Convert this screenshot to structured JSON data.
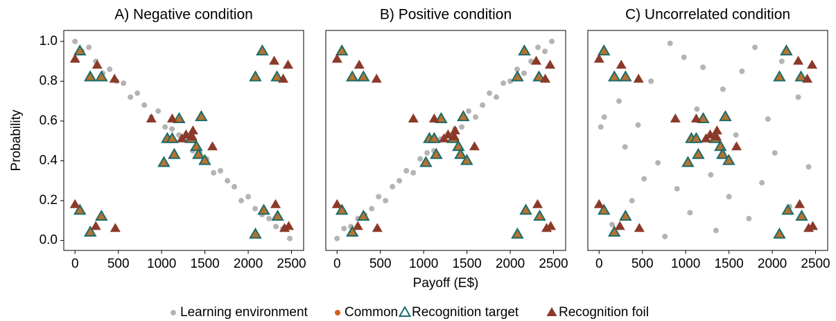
{
  "chart_data": [
    {
      "type": "scatter",
      "title": "A) Negative condition",
      "ylabel": "Probability",
      "xlim": [
        -130,
        2640
      ],
      "ylim": [
        -0.05,
        1.055
      ],
      "xticks": [
        0,
        500,
        1000,
        1500,
        2000,
        2500
      ],
      "yticks": [
        {
          "value": 0,
          "label": "0.0"
        },
        {
          "value": 0.2,
          "label": "0.2"
        },
        {
          "value": 0.4,
          "label": "0.4"
        },
        {
          "value": 0.6,
          "label": "0.6"
        },
        {
          "value": 0.8,
          "label": "0.8"
        },
        {
          "value": 1,
          "label": "1.0"
        }
      ],
      "series": [
        {
          "name": "Learning environment",
          "color": "#b4b4b4",
          "marker": "circle",
          "x": [
            0,
            80,
            160,
            240,
            320,
            400,
            480,
            560,
            640,
            720,
            800,
            880,
            960,
            1040,
            1120,
            1200,
            1280,
            1360,
            1440,
            1520,
            1600,
            1680,
            1760,
            1840,
            1920,
            2000,
            2080,
            2160,
            2240,
            2320,
            2400,
            2480
          ],
          "values": [
            1.0,
            0.95,
            0.97,
            0.9,
            0.84,
            0.86,
            0.8,
            0.79,
            0.72,
            0.74,
            0.68,
            0.62,
            0.65,
            0.57,
            0.56,
            0.53,
            0.51,
            0.45,
            0.44,
            0.41,
            0.34,
            0.35,
            0.3,
            0.27,
            0.2,
            0.22,
            0.16,
            0.13,
            0.11,
            0.07,
            0.06,
            0.01
          ]
        },
        {
          "name": "Common",
          "color": "#d2601a",
          "marker": "circle",
          "x": [],
          "values": []
        },
        {
          "name": "Recognition target",
          "color": "#1a6b6b",
          "marker": "triangle-open",
          "marker_fill": "#b8732e",
          "x": [
            56,
            176,
            305,
            56,
            176,
            305,
            1026,
            1066,
            1122,
            1146,
            1202,
            1338,
            1402,
            1458,
            1426,
            1498,
            2083,
            2163,
            2332,
            2083,
            2180,
            2340
          ],
          "values": [
            0.95,
            0.82,
            0.82,
            0.15,
            0.04,
            0.12,
            0.39,
            0.51,
            0.51,
            0.43,
            0.61,
            0.51,
            0.47,
            0.62,
            0.43,
            0.4,
            0.82,
            0.95,
            0.82,
            0.03,
            0.15,
            0.12
          ]
        },
        {
          "name": "Recognition foil",
          "color": "#8b3a2a",
          "marker": "triangle",
          "x": [
            0,
            256,
            456,
            0,
            240,
            465,
            881,
            1122,
            1234,
            1282,
            1354,
            1362,
            1587,
            2300,
            2404,
            2460,
            2316,
            2420,
            2468
          ],
          "values": [
            0.91,
            0.88,
            0.81,
            0.18,
            0.07,
            0.06,
            0.61,
            0.61,
            0.51,
            0.53,
            0.52,
            0.55,
            0.47,
            0.9,
            0.81,
            0.88,
            0.18,
            0.06,
            0.07
          ]
        }
      ]
    },
    {
      "type": "scatter",
      "title": "B) Positive condition",
      "xlabel": "Payoff (E$)",
      "xlim": [
        -130,
        2640
      ],
      "ylim": [
        -0.05,
        1.055
      ],
      "xticks": [
        0,
        500,
        1000,
        1500,
        2000,
        2500
      ],
      "series": [
        {
          "name": "Learning environment",
          "color": "#b4b4b4",
          "marker": "circle",
          "x": [
            0,
            80,
            160,
            240,
            320,
            400,
            480,
            560,
            640,
            720,
            800,
            880,
            960,
            1040,
            1120,
            1200,
            1280,
            1360,
            1440,
            1520,
            1600,
            1680,
            1760,
            1840,
            1920,
            2000,
            2080,
            2160,
            2240,
            2320,
            2400,
            2480
          ],
          "values": [
            0.01,
            0.06,
            0.07,
            0.11,
            0.13,
            0.16,
            0.22,
            0.2,
            0.27,
            0.3,
            0.35,
            0.34,
            0.41,
            0.44,
            0.45,
            0.51,
            0.53,
            0.56,
            0.57,
            0.65,
            0.62,
            0.68,
            0.74,
            0.72,
            0.79,
            0.8,
            0.86,
            0.84,
            0.9,
            0.97,
            0.95,
            1.0
          ]
        },
        {
          "name": "Common",
          "color": "#d2601a",
          "marker": "circle",
          "x": [],
          "values": []
        },
        {
          "name": "Recognition target",
          "color": "#1a6b6b",
          "marker": "triangle-open",
          "marker_fill": "#b8732e",
          "x": [
            56,
            176,
            305,
            56,
            176,
            305,
            1026,
            1066,
            1122,
            1146,
            1202,
            1338,
            1402,
            1458,
            1426,
            1498,
            2083,
            2163,
            2332,
            2083,
            2180,
            2340
          ],
          "values": [
            0.95,
            0.82,
            0.82,
            0.15,
            0.04,
            0.12,
            0.39,
            0.51,
            0.51,
            0.43,
            0.61,
            0.51,
            0.47,
            0.62,
            0.43,
            0.4,
            0.82,
            0.95,
            0.82,
            0.03,
            0.15,
            0.12
          ]
        },
        {
          "name": "Recognition foil",
          "color": "#8b3a2a",
          "marker": "triangle",
          "x": [
            0,
            256,
            456,
            0,
            240,
            465,
            881,
            1122,
            1234,
            1282,
            1354,
            1362,
            1587,
            2300,
            2404,
            2460,
            2316,
            2420,
            2468
          ],
          "values": [
            0.91,
            0.88,
            0.81,
            0.18,
            0.07,
            0.06,
            0.61,
            0.61,
            0.51,
            0.53,
            0.52,
            0.55,
            0.47,
            0.9,
            0.81,
            0.88,
            0.18,
            0.06,
            0.07
          ]
        }
      ]
    },
    {
      "type": "scatter",
      "title": "C) Uncorrelated condition",
      "xlim": [
        -130,
        2640
      ],
      "ylim": [
        -0.05,
        1.055
      ],
      "xticks": [
        0,
        500,
        1000,
        1500,
        2000,
        2500
      ],
      "series": [
        {
          "name": "Learning environment",
          "color": "#b4b4b4",
          "marker": "circle",
          "x": [
            20,
            60,
            150,
            230,
            300,
            380,
            450,
            520,
            600,
            680,
            760,
            820,
            900,
            980,
            1050,
            1130,
            1200,
            1290,
            1350,
            1430,
            1500,
            1580,
            1650,
            1730,
            1800,
            1880,
            1950,
            2030,
            2110,
            2200,
            2300,
            2420
          ],
          "values": [
            0.57,
            0.62,
            0.08,
            0.7,
            0.47,
            0.2,
            0.58,
            0.31,
            0.8,
            0.39,
            0.02,
            0.99,
            0.26,
            0.92,
            0.14,
            0.66,
            0.87,
            0.33,
            0.05,
            0.76,
            0.22,
            0.53,
            0.85,
            0.11,
            0.97,
            0.29,
            0.61,
            0.44,
            0.9,
            0.17,
            0.72,
            0.37
          ]
        },
        {
          "name": "Common",
          "color": "#d2601a",
          "marker": "circle",
          "x": [],
          "values": []
        },
        {
          "name": "Recognition target",
          "color": "#1a6b6b",
          "marker": "triangle-open",
          "marker_fill": "#b8732e",
          "x": [
            56,
            176,
            305,
            56,
            176,
            305,
            1026,
            1066,
            1122,
            1146,
            1202,
            1338,
            1402,
            1458,
            1426,
            1498,
            2083,
            2163,
            2332,
            2083,
            2180,
            2340
          ],
          "values": [
            0.95,
            0.82,
            0.82,
            0.15,
            0.04,
            0.12,
            0.39,
            0.51,
            0.51,
            0.43,
            0.61,
            0.51,
            0.47,
            0.62,
            0.43,
            0.4,
            0.82,
            0.95,
            0.82,
            0.03,
            0.15,
            0.12
          ]
        },
        {
          "name": "Recognition foil",
          "color": "#8b3a2a",
          "marker": "triangle",
          "x": [
            0,
            256,
            456,
            0,
            240,
            465,
            881,
            1122,
            1234,
            1282,
            1354,
            1362,
            1587,
            2300,
            2404,
            2460,
            2316,
            2420,
            2468
          ],
          "values": [
            0.91,
            0.88,
            0.81,
            0.18,
            0.07,
            0.06,
            0.61,
            0.61,
            0.51,
            0.53,
            0.52,
            0.55,
            0.47,
            0.9,
            0.81,
            0.88,
            0.18,
            0.06,
            0.07
          ]
        }
      ]
    }
  ]
}
